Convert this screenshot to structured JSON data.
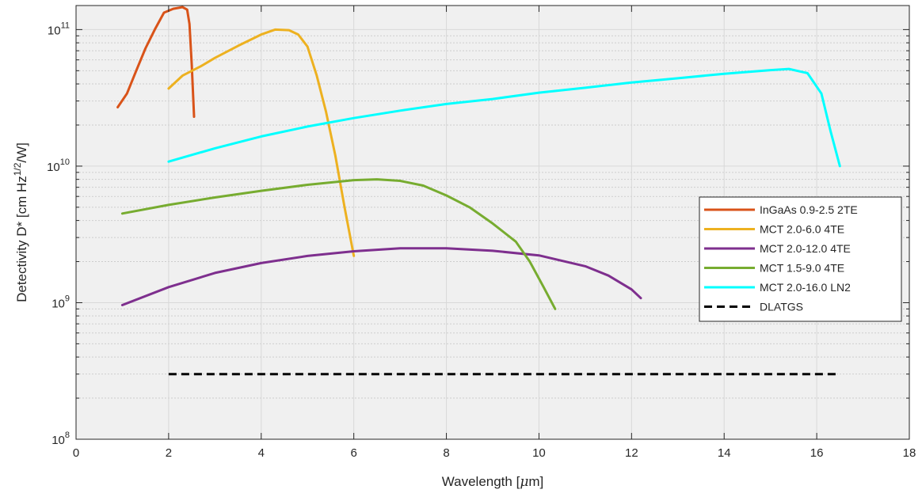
{
  "chart_data": {
    "type": "line",
    "title": "",
    "xlabel": "Wavelength [μm]",
    "ylabel": "Detectivity D* [cm Hz^{1/2}/W]",
    "xlim": [
      0,
      18
    ],
    "ylim": [
      100000000.0,
      150000000000.0
    ],
    "yscale": "log",
    "grid": true,
    "minor_grid_y": true,
    "background_color": "#f0f0f0",
    "legend_position": "right",
    "x_ticks": [
      0,
      2,
      4,
      6,
      8,
      10,
      12,
      14,
      16,
      18
    ],
    "x_tick_labels": [
      "0",
      "2",
      "4",
      "6",
      "8",
      "10",
      "12",
      "14",
      "16",
      "18"
    ],
    "y_ticks": [
      {
        "value": 100000000.0,
        "base": "10",
        "exp": "8"
      },
      {
        "value": 1000000000.0,
        "base": "10",
        "exp": "9"
      },
      {
        "value": 10000000000.0,
        "base": "10",
        "exp": "10"
      },
      {
        "value": 100000000000.0,
        "base": "10",
        "exp": "11"
      }
    ],
    "series": [
      {
        "name": "InGaAs 0.9-2.5 2TE",
        "color": "#d95319",
        "style": "solid",
        "points": [
          [
            0.9,
            27000000000.0
          ],
          [
            1.1,
            34000000000.0
          ],
          [
            1.3,
            50000000000.0
          ],
          [
            1.5,
            73000000000.0
          ],
          [
            1.7,
            100000000000.0
          ],
          [
            1.9,
            133000000000.0
          ],
          [
            2.1,
            142000000000.0
          ],
          [
            2.3,
            146000000000.0
          ],
          [
            2.4,
            140000000000.0
          ],
          [
            2.45,
            110000000000.0
          ],
          [
            2.5,
            55000000000.0
          ],
          [
            2.55,
            23000000000.0
          ]
        ]
      },
      {
        "name": "MCT 2.0-6.0 4TE",
        "color": "#edb120",
        "style": "solid",
        "points": [
          [
            2.0,
            37000000000.0
          ],
          [
            2.3,
            46000000000.0
          ],
          [
            2.7,
            54000000000.0
          ],
          [
            3.0,
            62000000000.0
          ],
          [
            3.5,
            76000000000.0
          ],
          [
            4.0,
            92000000000.0
          ],
          [
            4.3,
            100000000000.0
          ],
          [
            4.6,
            99000000000.0
          ],
          [
            4.8,
            92000000000.0
          ],
          [
            5.0,
            75000000000.0
          ],
          [
            5.2,
            46000000000.0
          ],
          [
            5.4,
            25000000000.0
          ],
          [
            5.6,
            12000000000.0
          ],
          [
            5.8,
            5000000000.0
          ],
          [
            6.0,
            2200000000.0
          ]
        ]
      },
      {
        "name": "MCT 2.0-12.0 4TE",
        "color": "#7e2f8e",
        "style": "solid",
        "points": [
          [
            1.0,
            960000000.0
          ],
          [
            2.0,
            1300000000.0
          ],
          [
            3.0,
            1650000000.0
          ],
          [
            4.0,
            1950000000.0
          ],
          [
            5.0,
            2200000000.0
          ],
          [
            6.0,
            2380000000.0
          ],
          [
            7.0,
            2500000000.0
          ],
          [
            8.0,
            2500000000.0
          ],
          [
            9.0,
            2400000000.0
          ],
          [
            10.0,
            2220000000.0
          ],
          [
            11.0,
            1850000000.0
          ],
          [
            11.5,
            1580000000.0
          ],
          [
            12.0,
            1250000000.0
          ],
          [
            12.2,
            1080000000.0
          ]
        ]
      },
      {
        "name": "MCT 1.5-9.0 4TE",
        "color": "#77ac30",
        "style": "solid",
        "points": [
          [
            1.0,
            4500000000.0
          ],
          [
            2.0,
            5200000000.0
          ],
          [
            3.0,
            5900000000.0
          ],
          [
            4.0,
            6600000000.0
          ],
          [
            5.0,
            7300000000.0
          ],
          [
            6.0,
            7900000000.0
          ],
          [
            6.5,
            8000000000.0
          ],
          [
            7.0,
            7800000000.0
          ],
          [
            7.5,
            7200000000.0
          ],
          [
            8.0,
            6100000000.0
          ],
          [
            8.5,
            5000000000.0
          ],
          [
            9.0,
            3800000000.0
          ],
          [
            9.5,
            2800000000.0
          ],
          [
            9.8,
            2000000000.0
          ],
          [
            10.1,
            1300000000.0
          ],
          [
            10.35,
            900000000.0
          ]
        ]
      },
      {
        "name": "MCT 2.0-16.0 LN2",
        "color": "#00ffff",
        "style": "solid",
        "points": [
          [
            2.0,
            10800000000.0
          ],
          [
            3.0,
            13500000000.0
          ],
          [
            4.0,
            16500000000.0
          ],
          [
            5.0,
            19500000000.0
          ],
          [
            6.0,
            22500000000.0
          ],
          [
            7.0,
            25500000000.0
          ],
          [
            8.0,
            28500000000.0
          ],
          [
            9.0,
            31000000000.0
          ],
          [
            10.0,
            34500000000.0
          ],
          [
            11.0,
            37500000000.0
          ],
          [
            12.0,
            41000000000.0
          ],
          [
            13.0,
            44000000000.0
          ],
          [
            14.0,
            47500000000.0
          ],
          [
            15.0,
            50500000000.0
          ],
          [
            15.4,
            51500000000.0
          ],
          [
            15.8,
            48000000000.0
          ],
          [
            16.1,
            34000000000.0
          ],
          [
            16.3,
            18000000000.0
          ],
          [
            16.5,
            10000000000.0
          ]
        ]
      },
      {
        "name": "DLATGS",
        "color": "#000000",
        "style": "dashed",
        "points": [
          [
            2.0,
            300000000.0
          ],
          [
            16.5,
            300000000.0
          ]
        ]
      }
    ]
  }
}
